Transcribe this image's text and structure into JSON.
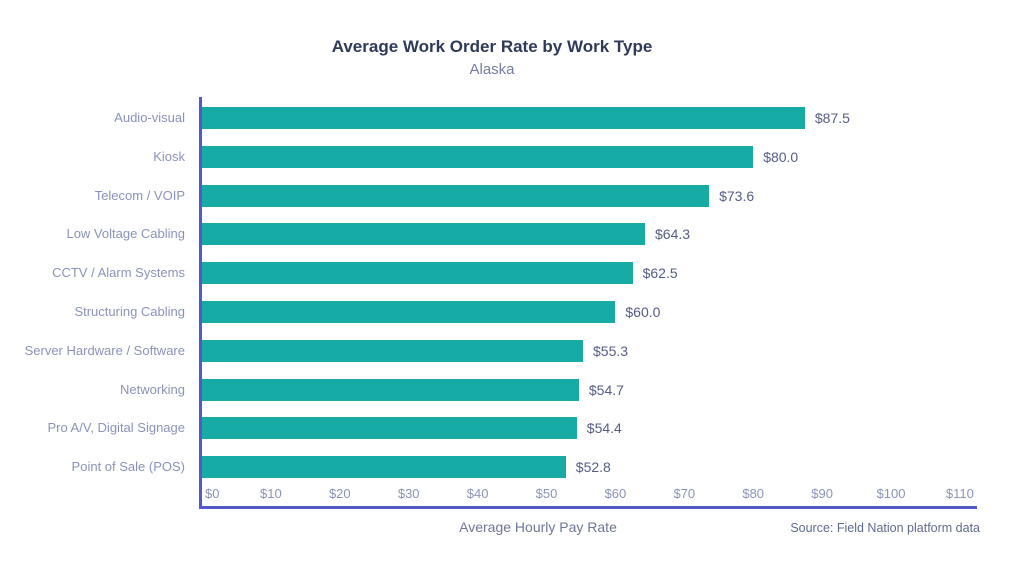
{
  "page": {
    "background": "#ffffff"
  },
  "chart_data": {
    "type": "bar",
    "orientation": "horizontal",
    "title": "Average Work Order Rate by Work Type",
    "subtitle": "Alaska",
    "categories": [
      "Audio-visual",
      "Kiosk",
      "Telecom / VOIP",
      "Low Voltage Cabling",
      "CCTV / Alarm Systems",
      "Structuring Cabling",
      "Server Hardware / Software",
      "Networking",
      "Pro A/V, Digital Signage",
      "Point of Sale (POS)"
    ],
    "values": [
      87.5,
      80.0,
      73.6,
      64.3,
      62.5,
      60.0,
      55.3,
      54.7,
      54.4,
      52.8
    ],
    "value_labels": [
      "$87.5",
      "$80.0",
      "$73.6",
      "$64.3",
      "$62.5",
      "$60.0",
      "$55.3",
      "$54.7",
      "$54.4",
      "$52.8"
    ],
    "x_ticks": [
      "$0",
      "$10",
      "$20",
      "$30",
      "$40",
      "$50",
      "$60",
      "$70",
      "$80",
      "$90",
      "$100",
      "$110"
    ],
    "xlim": [
      0,
      110
    ],
    "xlabel": "Average Hourly Pay Rate",
    "ylabel": "",
    "source": "Source: Field Nation platform data",
    "grid": false,
    "legend_position": "none",
    "bar_color": "#16aba4",
    "axis_color": "#5359c8",
    "title_color": "#2e3a58",
    "subtitle_color": "#737d9e",
    "category_label_color": "#8a93b7",
    "value_label_color": "#555d85"
  }
}
